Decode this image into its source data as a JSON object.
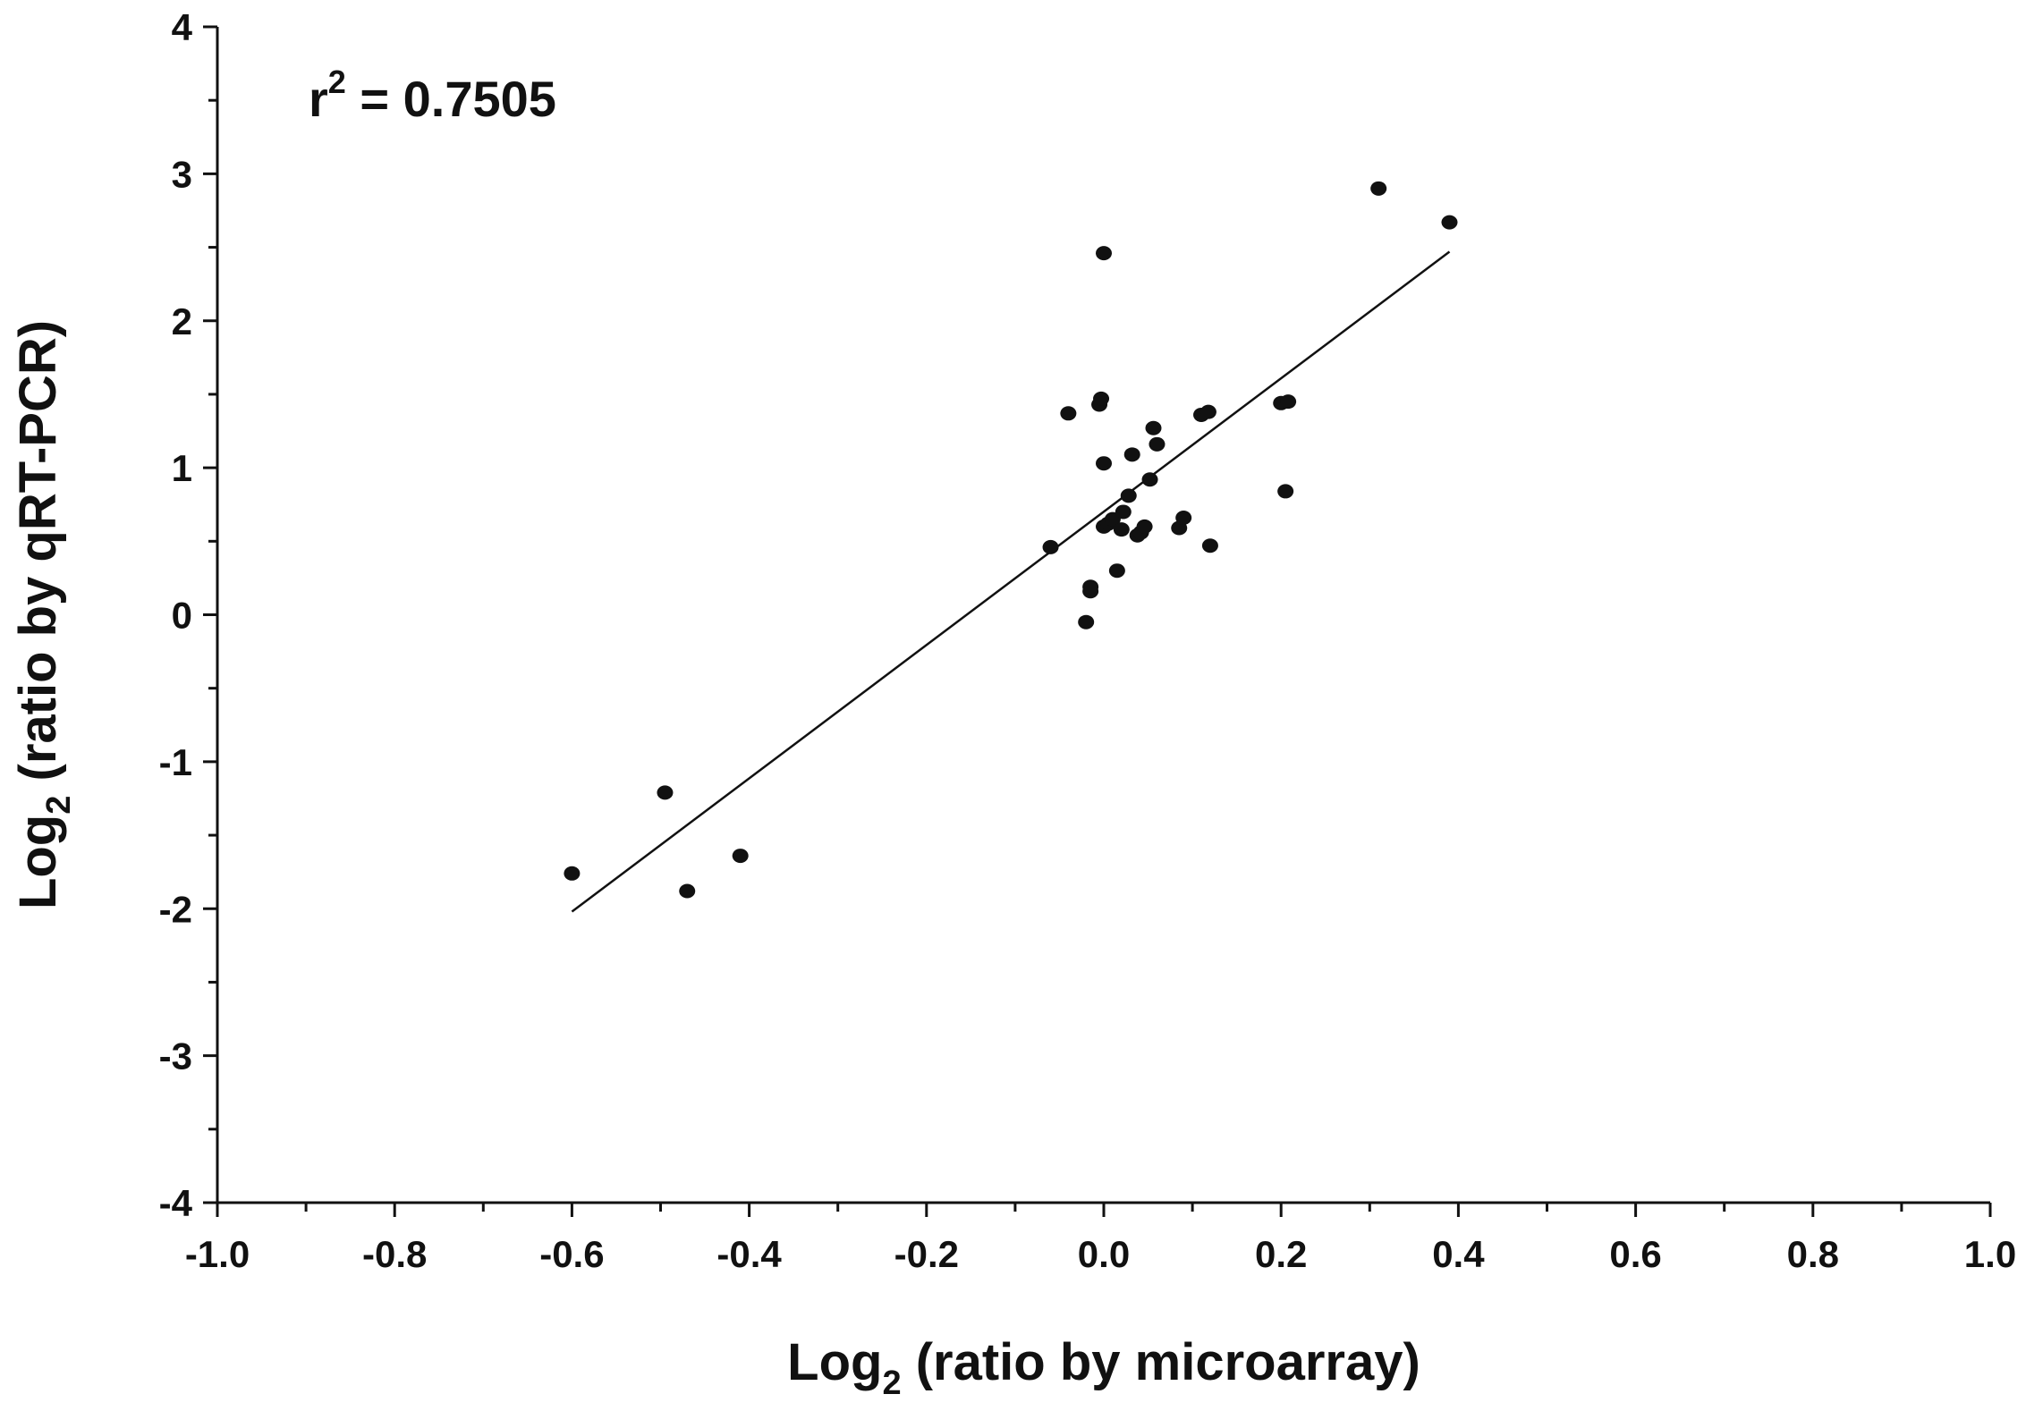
{
  "chart_data": {
    "type": "scatter",
    "title": "",
    "xlabel": {
      "main": "Log",
      "sub": "2",
      "rest": " (ratio by microarray)"
    },
    "ylabel": {
      "main": "Log",
      "sub": "2",
      "rest": " (ratio by qRT-PCR)"
    },
    "annotation": {
      "main": "r",
      "sup": "2",
      "rest": " = 0.7505"
    },
    "xlim": [
      -1.0,
      1.0
    ],
    "ylim": [
      -4,
      4
    ],
    "x_ticks": [
      -1.0,
      -0.8,
      -0.6,
      -0.4,
      -0.2,
      0.0,
      0.2,
      0.4,
      0.6,
      0.8,
      1.0
    ],
    "x_tick_labels": [
      "-1.0",
      "-0.8",
      "-0.6",
      "-0.4",
      "-0.2",
      "0.0",
      "0.2",
      "0.4",
      "0.6",
      "0.8",
      "1.0"
    ],
    "y_ticks": [
      -4,
      -3,
      -2,
      -1,
      0,
      1,
      2,
      3,
      4
    ],
    "y_tick_labels": [
      "-4",
      "-3",
      "-2",
      "-1",
      "0",
      "1",
      "2",
      "3",
      "4"
    ],
    "grid": false,
    "points": [
      {
        "x": -0.6,
        "y": -1.76
      },
      {
        "x": -0.495,
        "y": -1.21
      },
      {
        "x": -0.47,
        "y": -1.88
      },
      {
        "x": -0.41,
        "y": -1.64
      },
      {
        "x": -0.06,
        "y": 0.46
      },
      {
        "x": -0.04,
        "y": 1.37
      },
      {
        "x": -0.02,
        "y": -0.05
      },
      {
        "x": -0.015,
        "y": 0.16
      },
      {
        "x": -0.015,
        "y": 0.19
      },
      {
        "x": -0.005,
        "y": 1.43
      },
      {
        "x": -0.003,
        "y": 1.47
      },
      {
        "x": 0.0,
        "y": 2.46
      },
      {
        "x": 0.0,
        "y": 1.03
      },
      {
        "x": 0.0,
        "y": 0.6
      },
      {
        "x": 0.005,
        "y": 0.62
      },
      {
        "x": 0.01,
        "y": 0.65
      },
      {
        "x": 0.015,
        "y": 0.3
      },
      {
        "x": 0.02,
        "y": 0.58
      },
      {
        "x": 0.022,
        "y": 0.7
      },
      {
        "x": 0.028,
        "y": 0.81
      },
      {
        "x": 0.032,
        "y": 1.09
      },
      {
        "x": 0.038,
        "y": 0.54
      },
      {
        "x": 0.042,
        "y": 0.56
      },
      {
        "x": 0.046,
        "y": 0.6
      },
      {
        "x": 0.052,
        "y": 0.92
      },
      {
        "x": 0.056,
        "y": 1.27
      },
      {
        "x": 0.06,
        "y": 1.16
      },
      {
        "x": 0.085,
        "y": 0.59
      },
      {
        "x": 0.09,
        "y": 0.66
      },
      {
        "x": 0.11,
        "y": 1.36
      },
      {
        "x": 0.118,
        "y": 1.38
      },
      {
        "x": 0.12,
        "y": 0.47
      },
      {
        "x": 0.2,
        "y": 1.44
      },
      {
        "x": 0.208,
        "y": 1.45
      },
      {
        "x": 0.205,
        "y": 0.84
      },
      {
        "x": 0.31,
        "y": 2.9
      },
      {
        "x": 0.39,
        "y": 2.67
      }
    ],
    "fit_line": {
      "x": [
        -0.6,
        0.39
      ],
      "y": [
        -2.02,
        2.47
      ]
    }
  }
}
